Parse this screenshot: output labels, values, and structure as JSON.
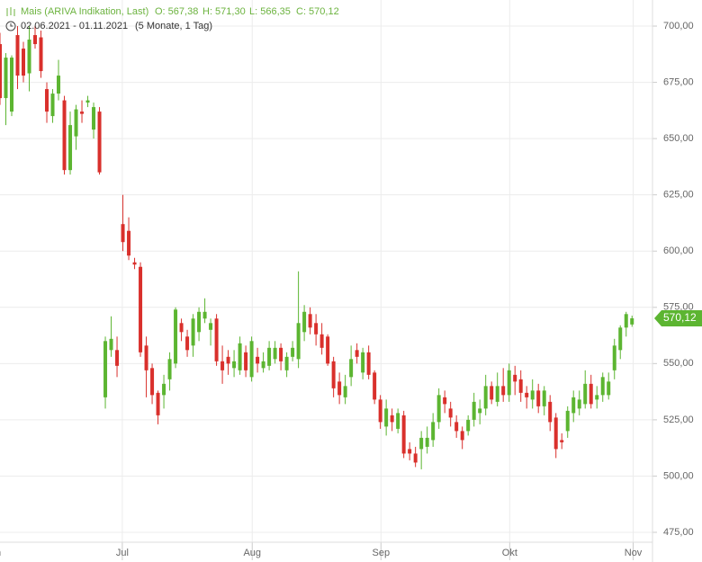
{
  "header": {
    "instrument": "Mais (ARIVA Indikation, Last)",
    "open": "O: 567,38",
    "high": "H: 571,30",
    "low": "L: 566,35",
    "close": "C: 570,12",
    "date_range": "02.06.2021 - 01.11.2021",
    "span": "(5 Monate, 1 Tag)"
  },
  "chart_data": {
    "type": "candlestick",
    "up_color": "#5cb531",
    "down_color": "#d9302c",
    "grid": true,
    "last_price_label": "570,12",
    "xlim": [
      0,
      111.5
    ],
    "xticks": [
      {
        "value": -1.2,
        "label": "Jun"
      },
      {
        "value": 20.9,
        "label": "Jul"
      },
      {
        "value": 43.1,
        "label": "Aug"
      },
      {
        "value": 65.1,
        "label": "Sep"
      },
      {
        "value": 87.1,
        "label": "Okt"
      },
      {
        "value": 108.2,
        "label": "Nov"
      }
    ],
    "ylim": [
      470.6,
      711.6
    ],
    "yticks": [
      {
        "value": 475,
        "label": "475,00"
      },
      {
        "value": 500,
        "label": "500,00"
      },
      {
        "value": 525,
        "label": "525,00"
      },
      {
        "value": 550,
        "label": "550,00"
      },
      {
        "value": 575,
        "label": "575,00"
      },
      {
        "value": 600,
        "label": "600,00"
      },
      {
        "value": 625,
        "label": "625,00"
      },
      {
        "value": 650,
        "label": "650,00"
      },
      {
        "value": 675,
        "label": "675,00"
      },
      {
        "value": 700,
        "label": "700,00"
      }
    ],
    "open": [
      692,
      668,
      662,
      696,
      690,
      679,
      696,
      695,
      672,
      660,
      670,
      667,
      636,
      651,
      662,
      666,
      654,
      662,
      535,
      556,
      556,
      612,
      609,
      595,
      593,
      558,
      548,
      537,
      536,
      543,
      550,
      568,
      562,
      558,
      564,
      570,
      565,
      570,
      551,
      553,
      548,
      547,
      555,
      544,
      553,
      548,
      549,
      552,
      557,
      547,
      553,
      552,
      564,
      572,
      568,
      563,
      562,
      551,
      542,
      535,
      544,
      556,
      546,
      555,
      546,
      534,
      522,
      527,
      521,
      527,
      512,
      510,
      512,
      513,
      516,
      524,
      535,
      530,
      524,
      520,
      520,
      525,
      528,
      530,
      540,
      533,
      540,
      536,
      545,
      543,
      537,
      534,
      538,
      531,
      533,
      526,
      516,
      520,
      528,
      530,
      532,
      541,
      534,
      536,
      536,
      547,
      556,
      566,
      567.38
    ],
    "high": [
      697,
      688,
      687,
      700,
      693,
      700,
      700,
      698,
      675,
      672,
      685,
      669,
      662,
      665,
      667,
      669,
      666,
      664,
      562,
      571,
      562,
      625,
      615,
      597,
      595,
      562,
      550,
      538,
      545,
      555,
      575,
      570,
      565,
      572,
      575,
      579,
      570,
      572,
      558,
      556,
      556,
      562,
      558,
      562,
      557,
      555,
      560,
      560,
      559,
      555,
      560,
      591,
      576,
      575,
      572,
      568,
      563,
      553,
      546,
      545,
      558,
      559,
      557,
      558,
      547,
      536,
      534,
      530,
      530,
      529,
      515,
      513,
      520,
      522,
      528,
      539,
      538,
      533,
      527,
      522,
      527,
      537,
      534,
      545,
      542,
      546,
      548,
      550,
      549,
      547,
      540,
      543,
      541,
      540,
      536,
      528,
      519,
      531,
      538,
      538,
      547,
      545,
      540,
      546,
      546,
      561,
      567,
      573,
      571.3
    ],
    "low": [
      665,
      656,
      660,
      672,
      675,
      671,
      690,
      677,
      657,
      657,
      667,
      634,
      634,
      645,
      657,
      664,
      650,
      634,
      530,
      553,
      544,
      600,
      596,
      592,
      553,
      535,
      532,
      523,
      530,
      538,
      548,
      560,
      553,
      553,
      560,
      568,
      558,
      549,
      541,
      545,
      544,
      545,
      544,
      542,
      546,
      546,
      547,
      550,
      547,
      544,
      551,
      548,
      560,
      563,
      558,
      554,
      549,
      535,
      532,
      532,
      540,
      550,
      543,
      543,
      532,
      521,
      518,
      520,
      519,
      508,
      507,
      504,
      503,
      510,
      513,
      521,
      528,
      522,
      517,
      512,
      518,
      522,
      523,
      527,
      532,
      531,
      533,
      533,
      536,
      533,
      530,
      530,
      528,
      527,
      520,
      508,
      512,
      517,
      524,
      527,
      530,
      530,
      530,
      533,
      534,
      543,
      552,
      562,
      566.35
    ],
    "close": [
      668,
      686,
      686,
      678,
      678,
      694,
      692,
      680,
      662,
      670,
      678,
      636,
      656,
      663,
      661,
      667,
      664,
      635,
      560,
      561,
      549,
      604,
      598,
      594,
      555,
      547,
      536,
      527,
      541,
      552,
      574,
      564,
      556,
      570,
      573,
      573,
      568,
      551,
      547,
      550,
      551,
      559,
      547,
      560,
      550,
      551,
      557,
      557,
      551,
      553,
      557,
      568,
      573,
      566,
      563,
      557,
      550,
      539,
      536,
      540,
      552,
      553,
      555,
      545,
      534,
      524,
      530,
      524,
      528,
      510,
      510,
      506,
      517,
      517,
      524,
      536,
      532,
      526,
      520,
      516,
      525,
      533,
      530,
      540,
      534,
      540,
      536,
      547,
      542,
      537,
      535,
      538,
      531,
      538,
      524,
      512,
      515,
      529,
      535,
      534,
      541,
      532,
      536,
      544,
      542,
      558,
      566,
      572,
      570.12
    ]
  }
}
